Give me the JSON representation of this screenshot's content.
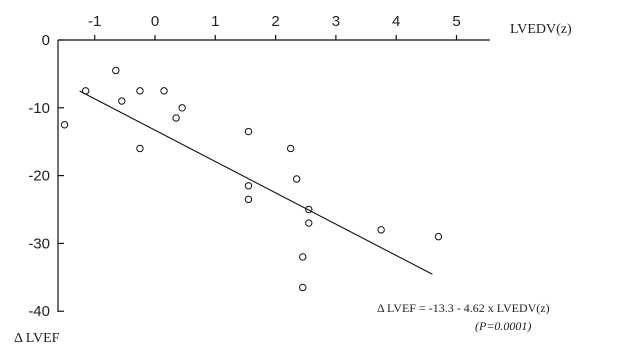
{
  "chart_data": {
    "type": "scatter",
    "xlabel": "LVEDV(z)",
    "ylabel": "Δ LVEF",
    "xlim": [
      -1.5,
      5.5
    ],
    "ylim": [
      -40,
      0
    ],
    "x_ticks": [
      -1,
      0,
      1,
      2,
      3,
      4,
      5
    ],
    "y_ticks": [
      0,
      -10,
      -20,
      -30,
      -40
    ],
    "grid": false,
    "points": [
      {
        "x": -1.5,
        "y": -12.5
      },
      {
        "x": -1.15,
        "y": -7.5
      },
      {
        "x": -0.65,
        "y": -4.5
      },
      {
        "x": -0.55,
        "y": -9.0
      },
      {
        "x": -0.25,
        "y": -7.5
      },
      {
        "x": -0.25,
        "y": -16.0
      },
      {
        "x": 0.15,
        "y": -7.5
      },
      {
        "x": 0.35,
        "y": -11.5
      },
      {
        "x": 0.45,
        "y": -10.0
      },
      {
        "x": 1.55,
        "y": -13.5
      },
      {
        "x": 1.55,
        "y": -21.5
      },
      {
        "x": 1.55,
        "y": -23.5
      },
      {
        "x": 2.25,
        "y": -16.0
      },
      {
        "x": 2.35,
        "y": -20.5
      },
      {
        "x": 2.45,
        "y": -32.0
      },
      {
        "x": 2.45,
        "y": -36.5
      },
      {
        "x": 2.55,
        "y": -25.0
      },
      {
        "x": 2.55,
        "y": -27.0
      },
      {
        "x": 3.75,
        "y": -28.0
      },
      {
        "x": 4.7,
        "y": -29.0
      }
    ],
    "fit_line": {
      "intercept": -13.3,
      "slope": -4.62,
      "x_range": [
        -1.25,
        4.6
      ]
    },
    "annotation": {
      "equation": "Δ LVEF = -13.3 - 4.62 x LVEDV(z)",
      "p_value": "(P=0.0001)"
    }
  }
}
